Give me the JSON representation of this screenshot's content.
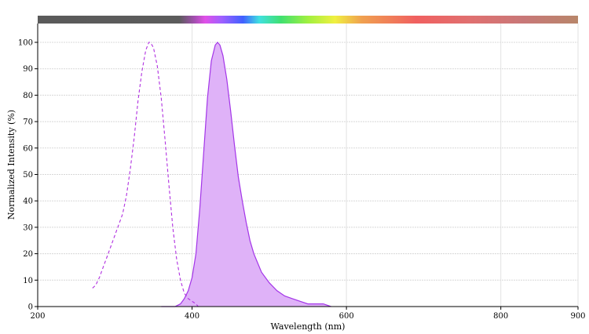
{
  "chart_data": {
    "type": "area",
    "xlabel": "Wavelength (nm)",
    "ylabel": "Normalized Intensity (%)",
    "xlim": [
      200,
      900
    ],
    "ylim": [
      0,
      100
    ],
    "x_ticks": [
      "200",
      "400",
      "600",
      "800",
      "900"
    ],
    "y_ticks": [
      "0",
      "10",
      "20",
      "30",
      "40",
      "50",
      "60",
      "70",
      "80",
      "90",
      "100"
    ],
    "grid": true,
    "legend": "none",
    "colors": {
      "excitation": "#b030e0",
      "emission_line": "#a335e8",
      "emission_fill": "#dfb2f8",
      "bar_gray": "#5a5a5a"
    },
    "series": [
      {
        "style": "dashed-line",
        "x": [
          271,
          275,
          280,
          285,
          290,
          295,
          300,
          305,
          310,
          315,
          320,
          325,
          330,
          335,
          340,
          344,
          346,
          350,
          355,
          360,
          365,
          370,
          375,
          380,
          385,
          390,
          395,
          400,
          405,
          408
        ],
        "y": [
          7,
          8,
          11,
          15,
          19,
          23,
          27,
          31,
          35,
          42,
          52,
          64,
          78,
          89,
          97,
          100,
          100,
          98,
          91,
          79,
          63,
          46,
          30,
          18,
          10,
          5,
          3,
          2,
          1,
          0
        ]
      },
      {
        "style": "filled-area",
        "x": [
          360,
          378,
          385,
          390,
          395,
          400,
          405,
          410,
          415,
          420,
          425,
          430,
          433,
          436,
          440,
          445,
          450,
          455,
          460,
          465,
          470,
          475,
          480,
          490,
          500,
          510,
          520,
          530,
          540,
          550,
          560,
          570,
          580
        ],
        "y": [
          0,
          0,
          1,
          3,
          6,
          11,
          20,
          37,
          58,
          79,
          93,
          99,
          100,
          99,
          95,
          86,
          74,
          61,
          49,
          40,
          32,
          25,
          20,
          13,
          9,
          6,
          4,
          3,
          2,
          1,
          1,
          1,
          0
        ]
      }
    ]
  }
}
